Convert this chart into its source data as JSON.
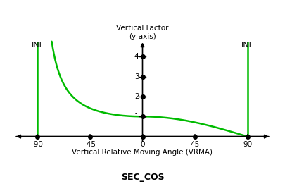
{
  "title": "SEC_COS",
  "ylabel": "Vertical Factor\n(y-axis)",
  "xlabel": "Vertical Relative Moving Angle (VRMA)",
  "xlim": [
    -110,
    110
  ],
  "ylim": [
    -0.35,
    4.8
  ],
  "x_ticks": [
    -90,
    -45,
    0,
    45,
    90
  ],
  "y_ticks": [
    1,
    2,
    3,
    4
  ],
  "curve_color": "#00bb00",
  "dot_color": "#000000",
  "axis_color": "#000000",
  "inf_label": "INF",
  "background_color": "#ffffff",
  "line_width": 1.8
}
